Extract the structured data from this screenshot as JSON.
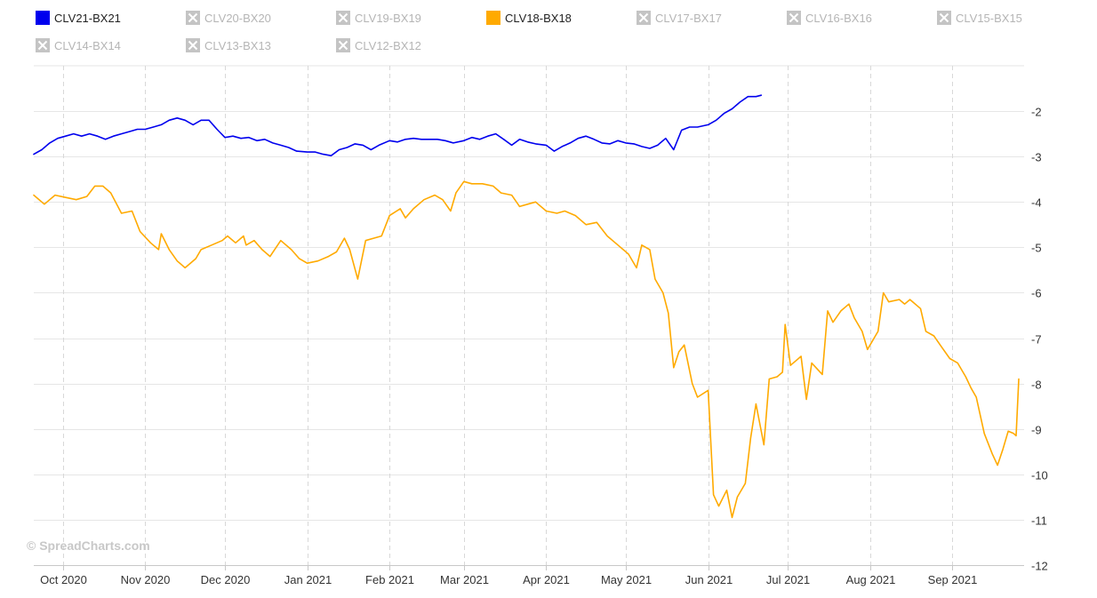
{
  "watermark": "© SpreadCharts.com",
  "legend": [
    {
      "label": "CLV21-BX21",
      "active": true,
      "color": "#0000ee"
    },
    {
      "label": "CLV20-BX20",
      "active": false
    },
    {
      "label": "CLV19-BX19",
      "active": false
    },
    {
      "label": "CLV18-BX18",
      "active": true,
      "color": "#ffaa00"
    },
    {
      "label": "CLV17-BX17",
      "active": false
    },
    {
      "label": "CLV16-BX16",
      "active": false
    },
    {
      "label": "CLV15-BX15",
      "active": false
    },
    {
      "label": "CLV14-BX14",
      "active": false
    },
    {
      "label": "CLV13-BX13",
      "active": false
    },
    {
      "label": "CLV12-BX12",
      "active": false
    }
  ],
  "chart_data": {
    "type": "line",
    "title": "",
    "xlabel": "",
    "ylabel": "",
    "ylim": [
      -12,
      -1
    ],
    "y_ticks": [
      -2,
      -3,
      -4,
      -5,
      -6,
      -7,
      -8,
      -9,
      -10,
      -11,
      -12
    ],
    "x_range": [
      "2020-09-20",
      "2021-09-28"
    ],
    "x_ticks": [
      {
        "date": "2020-10-01",
        "label": "Oct 2020"
      },
      {
        "date": "2020-11-01",
        "label": "Nov 2020"
      },
      {
        "date": "2020-12-01",
        "label": "Dec 2020"
      },
      {
        "date": "2021-01-01",
        "label": "Jan 2021"
      },
      {
        "date": "2021-02-01",
        "label": "Feb 2021"
      },
      {
        "date": "2021-03-01",
        "label": "Mar 2021"
      },
      {
        "date": "2021-04-01",
        "label": "Apr 2021"
      },
      {
        "date": "2021-05-01",
        "label": "May 2021"
      },
      {
        "date": "2021-06-01",
        "label": "Jun 2021"
      },
      {
        "date": "2021-07-01",
        "label": "Jul 2021"
      },
      {
        "date": "2021-08-01",
        "label": "Aug 2021"
      },
      {
        "date": "2021-09-01",
        "label": "Sep 2021"
      }
    ],
    "grid": true,
    "legend_position": "top",
    "series": [
      {
        "name": "CLV21-BX21",
        "color": "#0000ee",
        "points": [
          [
            "2020-09-20",
            -2.95
          ],
          [
            "2020-09-23",
            -2.85
          ],
          [
            "2020-09-26",
            -2.7
          ],
          [
            "2020-09-29",
            -2.6
          ],
          [
            "2020-10-02",
            -2.55
          ],
          [
            "2020-10-05",
            -2.5
          ],
          [
            "2020-10-08",
            -2.55
          ],
          [
            "2020-10-11",
            -2.5
          ],
          [
            "2020-10-14",
            -2.55
          ],
          [
            "2020-10-17",
            -2.62
          ],
          [
            "2020-10-20",
            -2.55
          ],
          [
            "2020-10-23",
            -2.5
          ],
          [
            "2020-10-26",
            -2.45
          ],
          [
            "2020-10-29",
            -2.4
          ],
          [
            "2020-11-01",
            -2.4
          ],
          [
            "2020-11-04",
            -2.35
          ],
          [
            "2020-11-07",
            -2.3
          ],
          [
            "2020-11-10",
            -2.2
          ],
          [
            "2020-11-13",
            -2.15
          ],
          [
            "2020-11-16",
            -2.2
          ],
          [
            "2020-11-19",
            -2.3
          ],
          [
            "2020-11-22",
            -2.2
          ],
          [
            "2020-11-25",
            -2.2
          ],
          [
            "2020-11-28",
            -2.4
          ],
          [
            "2020-12-01",
            -2.58
          ],
          [
            "2020-12-04",
            -2.55
          ],
          [
            "2020-12-07",
            -2.6
          ],
          [
            "2020-12-10",
            -2.58
          ],
          [
            "2020-12-13",
            -2.65
          ],
          [
            "2020-12-16",
            -2.62
          ],
          [
            "2020-12-19",
            -2.7
          ],
          [
            "2020-12-22",
            -2.75
          ],
          [
            "2020-12-25",
            -2.8
          ],
          [
            "2020-12-28",
            -2.88
          ],
          [
            "2021-01-01",
            -2.9
          ],
          [
            "2021-01-04",
            -2.9
          ],
          [
            "2021-01-07",
            -2.95
          ],
          [
            "2021-01-10",
            -2.98
          ],
          [
            "2021-01-13",
            -2.85
          ],
          [
            "2021-01-16",
            -2.8
          ],
          [
            "2021-01-19",
            -2.72
          ],
          [
            "2021-01-22",
            -2.75
          ],
          [
            "2021-01-25",
            -2.85
          ],
          [
            "2021-01-28",
            -2.75
          ],
          [
            "2021-02-01",
            -2.65
          ],
          [
            "2021-02-04",
            -2.68
          ],
          [
            "2021-02-07",
            -2.62
          ],
          [
            "2021-02-10",
            -2.6
          ],
          [
            "2021-02-13",
            -2.62
          ],
          [
            "2021-02-16",
            -2.62
          ],
          [
            "2021-02-19",
            -2.62
          ],
          [
            "2021-02-22",
            -2.65
          ],
          [
            "2021-02-25",
            -2.7
          ],
          [
            "2021-03-01",
            -2.65
          ],
          [
            "2021-03-04",
            -2.58
          ],
          [
            "2021-03-07",
            -2.62
          ],
          [
            "2021-03-10",
            -2.55
          ],
          [
            "2021-03-13",
            -2.5
          ],
          [
            "2021-03-16",
            -2.62
          ],
          [
            "2021-03-19",
            -2.75
          ],
          [
            "2021-03-22",
            -2.62
          ],
          [
            "2021-03-25",
            -2.68
          ],
          [
            "2021-03-28",
            -2.72
          ],
          [
            "2021-04-01",
            -2.75
          ],
          [
            "2021-04-04",
            -2.88
          ],
          [
            "2021-04-07",
            -2.78
          ],
          [
            "2021-04-10",
            -2.7
          ],
          [
            "2021-04-13",
            -2.6
          ],
          [
            "2021-04-16",
            -2.55
          ],
          [
            "2021-04-19",
            -2.62
          ],
          [
            "2021-04-22",
            -2.7
          ],
          [
            "2021-04-25",
            -2.72
          ],
          [
            "2021-04-28",
            -2.65
          ],
          [
            "2021-05-01",
            -2.7
          ],
          [
            "2021-05-04",
            -2.72
          ],
          [
            "2021-05-07",
            -2.78
          ],
          [
            "2021-05-10",
            -2.82
          ],
          [
            "2021-05-13",
            -2.75
          ],
          [
            "2021-05-16",
            -2.6
          ],
          [
            "2021-05-19",
            -2.85
          ],
          [
            "2021-05-22",
            -2.42
          ],
          [
            "2021-05-25",
            -2.35
          ],
          [
            "2021-05-28",
            -2.35
          ],
          [
            "2021-06-01",
            -2.3
          ],
          [
            "2021-06-04",
            -2.2
          ],
          [
            "2021-06-07",
            -2.05
          ],
          [
            "2021-06-10",
            -1.95
          ],
          [
            "2021-06-13",
            -1.8
          ],
          [
            "2021-06-16",
            -1.68
          ],
          [
            "2021-06-19",
            -1.68
          ],
          [
            "2021-06-21",
            -1.65
          ]
        ]
      },
      {
        "name": "CLV18-BX18",
        "color": "#ffaa00",
        "points": [
          [
            "2020-09-20",
            -3.85
          ],
          [
            "2020-09-24",
            -4.05
          ],
          [
            "2020-09-28",
            -3.85
          ],
          [
            "2020-10-02",
            -3.9
          ],
          [
            "2020-10-06",
            -3.95
          ],
          [
            "2020-10-10",
            -3.88
          ],
          [
            "2020-10-13",
            -3.65
          ],
          [
            "2020-10-16",
            -3.65
          ],
          [
            "2020-10-19",
            -3.8
          ],
          [
            "2020-10-23",
            -4.25
          ],
          [
            "2020-10-27",
            -4.2
          ],
          [
            "2020-10-30",
            -4.65
          ],
          [
            "2020-11-03",
            -4.9
          ],
          [
            "2020-11-06",
            -5.05
          ],
          [
            "2020-11-07",
            -4.7
          ],
          [
            "2020-11-10",
            -5.05
          ],
          [
            "2020-11-13",
            -5.3
          ],
          [
            "2020-11-16",
            -5.45
          ],
          [
            "2020-11-20",
            -5.25
          ],
          [
            "2020-11-22",
            -5.05
          ],
          [
            "2020-11-26",
            -4.95
          ],
          [
            "2020-11-30",
            -4.85
          ],
          [
            "2020-12-02",
            -4.75
          ],
          [
            "2020-12-05",
            -4.9
          ],
          [
            "2020-12-08",
            -4.75
          ],
          [
            "2020-12-09",
            -4.95
          ],
          [
            "2020-12-12",
            -4.85
          ],
          [
            "2020-12-15",
            -5.05
          ],
          [
            "2020-12-18",
            -5.2
          ],
          [
            "2020-12-22",
            -4.85
          ],
          [
            "2020-12-26",
            -5.05
          ],
          [
            "2020-12-29",
            -5.25
          ],
          [
            "2021-01-01",
            -5.35
          ],
          [
            "2021-01-05",
            -5.3
          ],
          [
            "2021-01-09",
            -5.2
          ],
          [
            "2021-01-12",
            -5.1
          ],
          [
            "2021-01-15",
            -4.8
          ],
          [
            "2021-01-17",
            -5.05
          ],
          [
            "2021-01-20",
            -5.7
          ],
          [
            "2021-01-23",
            -4.85
          ],
          [
            "2021-01-26",
            -4.8
          ],
          [
            "2021-01-29",
            -4.75
          ],
          [
            "2021-02-01",
            -4.3
          ],
          [
            "2021-02-05",
            -4.15
          ],
          [
            "2021-02-07",
            -4.35
          ],
          [
            "2021-02-10",
            -4.15
          ],
          [
            "2021-02-14",
            -3.95
          ],
          [
            "2021-02-18",
            -3.85
          ],
          [
            "2021-02-21",
            -3.95
          ],
          [
            "2021-02-24",
            -4.2
          ],
          [
            "2021-02-26",
            -3.8
          ],
          [
            "2021-03-01",
            -3.55
          ],
          [
            "2021-03-04",
            -3.6
          ],
          [
            "2021-03-08",
            -3.6
          ],
          [
            "2021-03-12",
            -3.65
          ],
          [
            "2021-03-15",
            -3.8
          ],
          [
            "2021-03-19",
            -3.85
          ],
          [
            "2021-03-22",
            -4.1
          ],
          [
            "2021-03-25",
            -4.05
          ],
          [
            "2021-03-28",
            -4.0
          ],
          [
            "2021-04-01",
            -4.2
          ],
          [
            "2021-04-05",
            -4.25
          ],
          [
            "2021-04-08",
            -4.2
          ],
          [
            "2021-04-12",
            -4.3
          ],
          [
            "2021-04-16",
            -4.5
          ],
          [
            "2021-04-20",
            -4.45
          ],
          [
            "2021-04-24",
            -4.75
          ],
          [
            "2021-04-28",
            -4.95
          ],
          [
            "2021-05-02",
            -5.15
          ],
          [
            "2021-05-05",
            -5.45
          ],
          [
            "2021-05-07",
            -4.95
          ],
          [
            "2021-05-10",
            -5.05
          ],
          [
            "2021-05-12",
            -5.7
          ],
          [
            "2021-05-15",
            -6.0
          ],
          [
            "2021-05-17",
            -6.45
          ],
          [
            "2021-05-19",
            -7.65
          ],
          [
            "2021-05-21",
            -7.3
          ],
          [
            "2021-05-23",
            -7.15
          ],
          [
            "2021-05-26",
            -8.0
          ],
          [
            "2021-05-28",
            -8.3
          ],
          [
            "2021-06-01",
            -8.15
          ],
          [
            "2021-06-03",
            -10.45
          ],
          [
            "2021-06-05",
            -10.7
          ],
          [
            "2021-06-08",
            -10.35
          ],
          [
            "2021-06-10",
            -10.95
          ],
          [
            "2021-06-12",
            -10.5
          ],
          [
            "2021-06-15",
            -10.2
          ],
          [
            "2021-06-17",
            -9.2
          ],
          [
            "2021-06-19",
            -8.45
          ],
          [
            "2021-06-22",
            -9.35
          ],
          [
            "2021-06-24",
            -7.9
          ],
          [
            "2021-06-27",
            -7.85
          ],
          [
            "2021-06-29",
            -7.75
          ],
          [
            "2021-06-30",
            -6.7
          ],
          [
            "2021-07-02",
            -7.6
          ],
          [
            "2021-07-06",
            -7.4
          ],
          [
            "2021-07-08",
            -8.35
          ],
          [
            "2021-07-10",
            -7.55
          ],
          [
            "2021-07-14",
            -7.8
          ],
          [
            "2021-07-16",
            -6.4
          ],
          [
            "2021-07-18",
            -6.65
          ],
          [
            "2021-07-21",
            -6.4
          ],
          [
            "2021-07-24",
            -6.25
          ],
          [
            "2021-07-26",
            -6.55
          ],
          [
            "2021-07-29",
            -6.85
          ],
          [
            "2021-07-31",
            -7.25
          ],
          [
            "2021-08-04",
            -6.85
          ],
          [
            "2021-08-06",
            -6.0
          ],
          [
            "2021-08-08",
            -6.2
          ],
          [
            "2021-08-12",
            -6.15
          ],
          [
            "2021-08-14",
            -6.25
          ],
          [
            "2021-08-16",
            -6.15
          ],
          [
            "2021-08-20",
            -6.35
          ],
          [
            "2021-08-22",
            -6.85
          ],
          [
            "2021-08-25",
            -6.95
          ],
          [
            "2021-08-28",
            -7.2
          ],
          [
            "2021-08-31",
            -7.45
          ],
          [
            "2021-09-03",
            -7.55
          ],
          [
            "2021-09-06",
            -7.85
          ],
          [
            "2021-09-08",
            -8.1
          ],
          [
            "2021-09-10",
            -8.3
          ],
          [
            "2021-09-13",
            -9.1
          ],
          [
            "2021-09-16",
            -9.55
          ],
          [
            "2021-09-18",
            -9.8
          ],
          [
            "2021-09-20",
            -9.45
          ],
          [
            "2021-09-22",
            -9.05
          ],
          [
            "2021-09-24",
            -9.1
          ],
          [
            "2021-09-25",
            -9.15
          ],
          [
            "2021-09-26",
            -7.9
          ]
        ]
      }
    ]
  }
}
